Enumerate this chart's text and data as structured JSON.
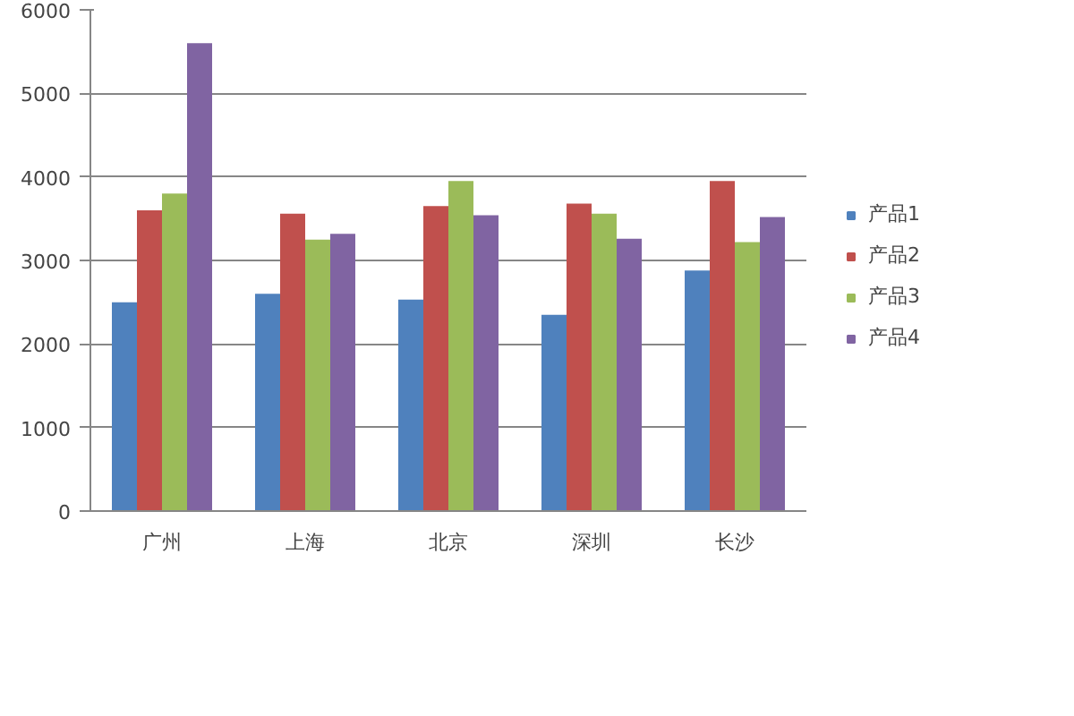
{
  "chart_data": {
    "type": "bar",
    "categories": [
      "广州",
      "上海",
      "北京",
      "深圳",
      "长沙"
    ],
    "series": [
      {
        "name": "产品1",
        "color": "#4f81bd",
        "values": [
          2500,
          2600,
          2530,
          2350,
          2880
        ]
      },
      {
        "name": "产品2",
        "color": "#c0504d",
        "values": [
          3600,
          3560,
          3650,
          3680,
          3950
        ]
      },
      {
        "name": "产品3",
        "color": "#9bbb59",
        "values": [
          3800,
          3250,
          3950,
          3560,
          3220
        ]
      },
      {
        "name": "产品4",
        "color": "#8064a2",
        "values": [
          5600,
          3320,
          3540,
          3260,
          3520
        ]
      }
    ],
    "ylim": [
      0,
      6000
    ],
    "yticks": [
      0,
      1000,
      2000,
      3000,
      4000,
      5000,
      6000
    ],
    "grid": "y",
    "legend": "right"
  }
}
